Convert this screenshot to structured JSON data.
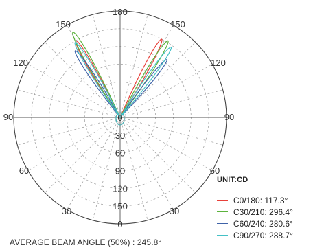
{
  "chart_data": {
    "type": "polar-line",
    "angle_labels_top": [
      "180",
      "150",
      "150",
      "120",
      "120",
      "90",
      "90",
      "60",
      "60",
      "30",
      "30",
      "0"
    ],
    "radial_labels": [
      "0",
      "30",
      "60",
      "90",
      "120",
      "150"
    ],
    "unit": "UNIT:CD",
    "series": [
      {
        "name": "C0/180:",
        "value": "117.3°",
        "color": "#e8403a",
        "lobes": [
          {
            "angle": 150,
            "peak": 150
          },
          {
            "angle": 152,
            "peak": 150
          }
        ]
      },
      {
        "name": "C30/210:",
        "value": "296.4°",
        "color": "#5cb33d",
        "lobes": [
          {
            "angle": 151,
            "peak": 165
          },
          {
            "angle": 148,
            "peak": 153
          }
        ]
      },
      {
        "name": "C60/240:",
        "value": "280.6°",
        "color": "#3f63a8",
        "lobes": [
          {
            "angle": 146,
            "peak": 136
          },
          {
            "angle": 141,
            "peak": 126
          }
        ]
      },
      {
        "name": "C90/270:",
        "value": "288.7°",
        "color": "#45c1c6",
        "lobes": [
          {
            "angle": 149,
            "peak": 148
          },
          {
            "angle": 144,
            "peak": 147
          }
        ]
      }
    ],
    "footer": "AVERAGE BEAM ANGLE (50%) : 245.8°"
  }
}
